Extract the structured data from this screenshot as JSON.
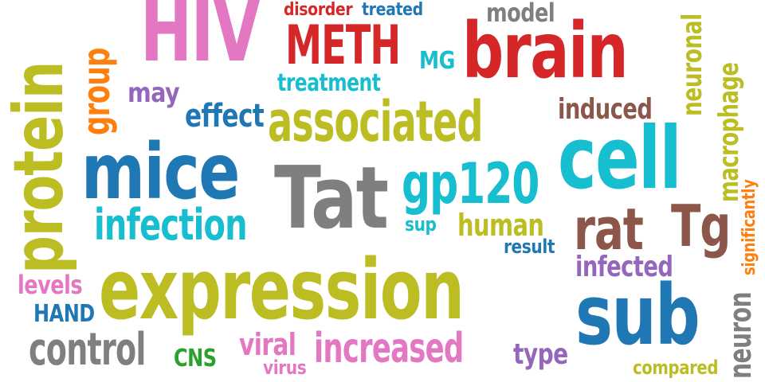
{
  "words": {
    "hiv": "HIV",
    "disorder": "disorder",
    "treated": "treated",
    "model": "model",
    "meth": "METH",
    "mg": "MG",
    "brain": "brain",
    "treatment": "treatment",
    "may": "may",
    "group": "group",
    "protein": "protein",
    "neuronal": "neuronal",
    "macrophage": "macrophage",
    "effect": "effect",
    "associated": "associated",
    "induced": "induced",
    "mice": "mice",
    "cell": "cell",
    "tat": "Tat",
    "gp120": "gp120",
    "significantly": "significantly",
    "infection": "infection",
    "rat": "rat",
    "tg": "Tg",
    "sup": "sup",
    "human": "human",
    "result": "result",
    "infected": "infected",
    "levels": "levels",
    "expression": "expression",
    "hand": "HAND",
    "sub": "sub",
    "neuron": "neuron",
    "control": "control",
    "cns": "CNS",
    "viral": "viral",
    "virus": "virus",
    "increased": "increased",
    "type": "type",
    "compared": "compared"
  },
  "colors": {
    "pink": "#e377c2",
    "red": "#d62728",
    "blue": "#1f77b4",
    "cyan": "#17becf",
    "olive": "#bcbd22",
    "grey": "#7f7f7f",
    "brown": "#8c564b",
    "purple": "#9467bd",
    "orange": "#ff7f0e",
    "green": "#2ca02c"
  }
}
